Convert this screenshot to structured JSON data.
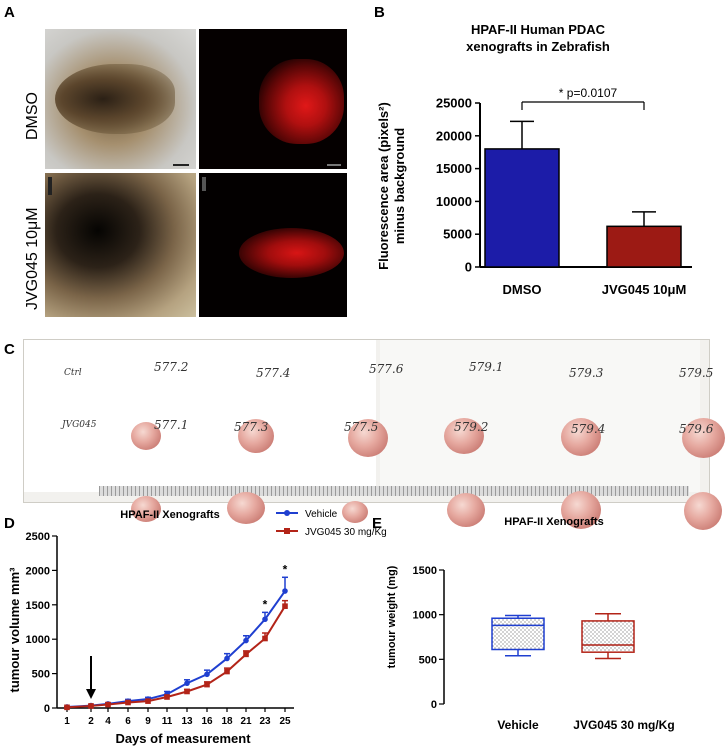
{
  "panels": {
    "a": "A",
    "b": "B",
    "c": "C",
    "d": "D",
    "e": "E"
  },
  "panel_a": {
    "row_labels": [
      "DMSO",
      "JVG045 10μM"
    ]
  },
  "panel_c": {
    "labels": [
      {
        "text": "Ctrl"
      },
      {
        "text": "577.2"
      },
      {
        "text": "577.4"
      },
      {
        "text": "577.6"
      },
      {
        "text": "579.1"
      },
      {
        "text": "579.3"
      },
      {
        "text": "579.5"
      },
      {
        "text": "JVG045"
      },
      {
        "text": "577.1"
      },
      {
        "text": "577.3"
      },
      {
        "text": "577.5"
      },
      {
        "text": "579.2"
      },
      {
        "text": "579.4"
      },
      {
        "text": "579.6"
      }
    ]
  },
  "chart_data": [
    {
      "id": "B",
      "type": "bar",
      "title": "HPAF-II Human PDAC xenografts in Zebrafish",
      "title_lines": [
        "HPAF-II Human PDAC",
        "xenografts in Zebrafish"
      ],
      "ylabel": "Fluorescence area (pixels²) minus background",
      "ylabel_lines": [
        "Fluorescence area (pixels²)",
        "minus background"
      ],
      "ylim": [
        0,
        25000
      ],
      "yticks": [
        0,
        5000,
        10000,
        15000,
        20000,
        25000
      ],
      "ytick_labels": [
        "0",
        "5000",
        "10000",
        "15000",
        "20000",
        "25000"
      ],
      "categories": [
        "DMSO",
        "JVG045 10μM"
      ],
      "values": [
        18000,
        6200
      ],
      "errors": [
        4200,
        2200
      ],
      "colors": [
        "#1c1ca8",
        "#9c1a14"
      ],
      "annotation": "* p=0.0107"
    },
    {
      "id": "D",
      "type": "line",
      "title": "HPAF-II Xenografts",
      "xlabel": "Days of measurement",
      "ylabel": "tumour volume mm³",
      "ylim": [
        0,
        2500
      ],
      "yticks": [
        0,
        500,
        1000,
        1500,
        2000,
        2500
      ],
      "ytick_labels": [
        "0",
        "500",
        "1000",
        "1500",
        "2000",
        "2500"
      ],
      "x": [
        1,
        2,
        4,
        6,
        9,
        11,
        13,
        16,
        18,
        21,
        23,
        25
      ],
      "x_tick_labels": [
        "1",
        "2",
        "4",
        "6",
        "9",
        "11",
        "13",
        "16",
        "18",
        "21",
        "23",
        "25"
      ],
      "series": [
        {
          "name": "Vehicle",
          "color": "#1f3fd0",
          "values": [
            15,
            35,
            60,
            100,
            130,
            200,
            360,
            490,
            720,
            980,
            1290,
            1700
          ],
          "errors": [
            5,
            10,
            15,
            25,
            25,
            40,
            50,
            60,
            70,
            70,
            100,
            200
          ]
        },
        {
          "name": "JVG045 30 mg/Kg",
          "color": "#b32418",
          "values": [
            10,
            30,
            50,
            80,
            100,
            160,
            240,
            340,
            530,
            780,
            1010,
            1480
          ],
          "errors": [
            4,
            8,
            12,
            15,
            15,
            20,
            30,
            40,
            50,
            50,
            80,
            80
          ]
        }
      ],
      "arrow_at_x": 2,
      "significance_at_x": [
        23,
        25
      ],
      "significance_label": "*"
    },
    {
      "id": "E",
      "type": "box",
      "title": "HPAF-II Xenografts",
      "ylabel": "tumour weight (mg)",
      "ylim": [
        0,
        1500
      ],
      "yticks": [
        0,
        500,
        1000,
        1500
      ],
      "ytick_labels": [
        "0",
        "500",
        "1000",
        "1500"
      ],
      "categories": [
        "Vehicle",
        "JVG045 30 mg/Kg"
      ],
      "boxes": [
        {
          "min": 540,
          "q1": 610,
          "median": 880,
          "q3": 960,
          "max": 990,
          "color": "#1f3fd0"
        },
        {
          "min": 510,
          "q1": 580,
          "median": 660,
          "q3": 930,
          "max": 1010,
          "color": "#b32418"
        }
      ]
    }
  ]
}
